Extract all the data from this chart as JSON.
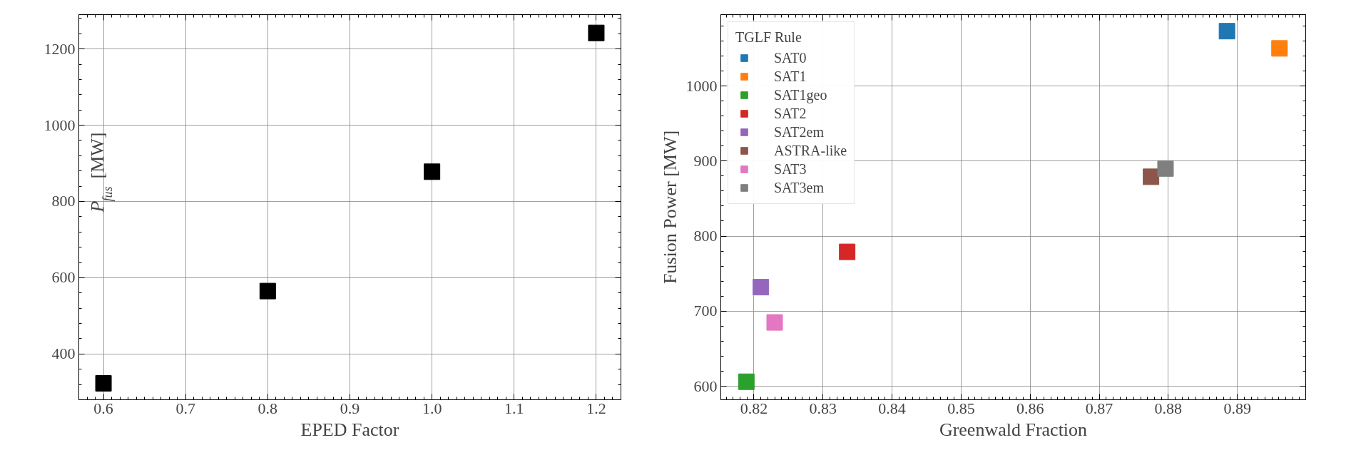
{
  "chart_data": [
    {
      "type": "scatter",
      "xlabel": "EPED Factor",
      "ylabel": "P$_{fus}$ [MW]",
      "x": [
        0.6,
        0.8,
        1.0,
        1.2
      ],
      "series": [
        {
          "color": "#000000",
          "values": [
            323,
            565,
            878,
            1242
          ]
        }
      ],
      "xlim": [
        0.57,
        1.23
      ],
      "ylim": [
        280,
        1290
      ],
      "xticks": [
        0.6,
        {
          "value": 0.7,
          "label": "0.7"
        },
        {
          "value": 0.8,
          "label": "0.8"
        },
        {
          "value": 0.9,
          "label": "0.9"
        },
        {
          "value": 1.0,
          "label": "1.0"
        },
        {
          "value": 1.1,
          "label": "1.1"
        },
        {
          "value": 1.2,
          "label": "1.2"
        }
      ],
      "yticks": [
        400,
        600,
        800,
        1000,
        1200
      ],
      "grid": true,
      "marker": "square",
      "legend": false
    },
    {
      "type": "scatter",
      "xlabel": "Greenwald Fraction",
      "ylabel": "Fusion Power [MW]",
      "legend_title": "TGLF Rule",
      "series": [
        {
          "name": "SAT0",
          "color": "#1f77b4",
          "x": [
            0.8885
          ],
          "values": [
            1073
          ]
        },
        {
          "name": "SAT1",
          "color": "#ff7f0e",
          "x": [
            0.8961
          ],
          "values": [
            1050
          ]
        },
        {
          "name": "SAT1geo",
          "color": "#2ca02c",
          "x": [
            0.8189
          ],
          "values": [
            606
          ]
        },
        {
          "name": "SAT2",
          "color": "#d62728",
          "x": [
            0.8335
          ],
          "values": [
            779
          ]
        },
        {
          "name": "SAT2em",
          "color": "#9467bd",
          "x": [
            0.821
          ],
          "values": [
            732
          ]
        },
        {
          "name": "ASTRA-like",
          "color": "#8c564b",
          "x": [
            0.8775
          ],
          "values": [
            879
          ]
        },
        {
          "name": "SAT3",
          "color": "#e377c2",
          "x": [
            0.823
          ],
          "values": [
            685
          ]
        },
        {
          "name": "SAT3em",
          "color": "#7f7f7f",
          "x": [
            0.8796
          ],
          "values": [
            890
          ]
        }
      ],
      "xlim": [
        0.8152,
        0.8999
      ],
      "ylim": [
        582,
        1095
      ],
      "xticks": [
        0.82,
        0.83,
        0.84,
        0.85,
        0.86,
        0.87,
        0.88,
        0.89
      ],
      "yticks": [
        600,
        700,
        800,
        900,
        1000
      ],
      "grid": true,
      "marker": "square",
      "legend": "top left"
    }
  ]
}
